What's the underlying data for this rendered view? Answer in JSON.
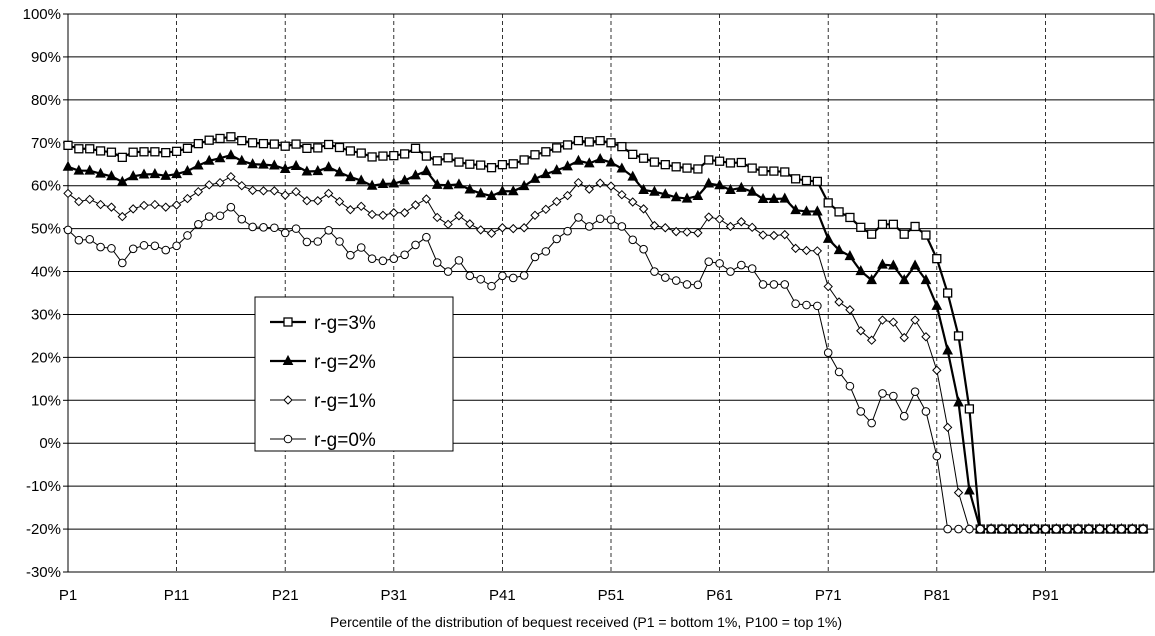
{
  "chart_data": {
    "type": "line",
    "title": "",
    "xlabel": "Percentile of the distribution of bequest received (P1 = bottom 1%, P100 = top 1%)",
    "ylabel": "",
    "ylim": [
      -30,
      100
    ],
    "xlim": [
      1,
      100
    ],
    "grid": "horizontal solid, vertical dashed",
    "legend": "center-left",
    "x_tick_labels": [
      "P1",
      "P11",
      "P21",
      "P31",
      "P41",
      "P51",
      "P61",
      "P71",
      "P81",
      "P91"
    ],
    "y_tick_labels": [
      "100%",
      "90%",
      "80%",
      "70%",
      "60%",
      "50%",
      "40%",
      "30%",
      "20%",
      "10%",
      "0%",
      "-10%",
      "-20%",
      "-30%"
    ],
    "series": [
      {
        "name": "r-g=3%",
        "marker": "square",
        "values": [
          69.4,
          68.6,
          68.6,
          68.1,
          67.8,
          66.6,
          67.8,
          67.9,
          67.9,
          67.7,
          68.0,
          68.7,
          69.8,
          70.6,
          71.0,
          71.4,
          70.5,
          70.0,
          69.8,
          69.7,
          69.2,
          69.7,
          68.7,
          68.8,
          69.6,
          68.9,
          68.1,
          67.6,
          66.7,
          66.9,
          67.0,
          67.4,
          68.7,
          66.9,
          65.8,
          66.5,
          65.5,
          65.0,
          64.8,
          64.2,
          64.9,
          65.1,
          66.0,
          67.2,
          67.9,
          68.8,
          69.5,
          70.5,
          70.2,
          70.5,
          70.0,
          69.1,
          67.3,
          66.4,
          65.5,
          64.9,
          64.4,
          64.1,
          63.9,
          66.0,
          65.7,
          65.3,
          65.4,
          64.1,
          63.4,
          63.4,
          63.2,
          61.6,
          61.2,
          61.0,
          56.0,
          53.9,
          52.6,
          50.3,
          48.7,
          51.0,
          51.0,
          48.7,
          50.5,
          48.5,
          43.0,
          35.0,
          25.0,
          8.0,
          -20,
          -20,
          -20,
          -20,
          -20,
          -20,
          -20,
          -20,
          -20,
          -20,
          -20,
          -20,
          -20,
          -20,
          -20,
          -20
        ]
      },
      {
        "name": "r-g=2%",
        "marker": "triangle",
        "values": [
          64.4,
          63.5,
          63.5,
          62.8,
          62.2,
          60.9,
          62.2,
          62.6,
          62.7,
          62.3,
          62.7,
          63.4,
          64.7,
          65.8,
          66.4,
          67.1,
          65.8,
          65.0,
          64.9,
          64.7,
          63.9,
          64.6,
          63.3,
          63.4,
          64.3,
          63.1,
          62.0,
          61.2,
          60.0,
          60.4,
          60.5,
          61.2,
          62.4,
          63.4,
          60.2,
          60.1,
          60.3,
          59.1,
          58.2,
          57.6,
          58.7,
          58.7,
          59.9,
          61.6,
          62.7,
          63.6,
          64.5,
          65.8,
          65.2,
          66.2,
          65.4,
          64.0,
          62.1,
          59.0,
          58.6,
          58.0,
          57.3,
          57.0,
          57.6,
          60.5,
          60.1,
          59.0,
          59.5,
          58.6,
          56.9,
          56.9,
          57.0,
          54.3,
          54.0,
          54.0,
          47.6,
          45.0,
          43.6,
          40.1,
          38.0,
          41.6,
          41.4,
          38.0,
          41.4,
          38.0,
          32.0,
          21.6,
          9.5,
          -11.0,
          -20,
          -20,
          -20,
          -20,
          -20,
          -20,
          -20,
          -20,
          -20,
          -20,
          -20,
          -20,
          -20,
          -20,
          -20,
          -20
        ]
      },
      {
        "name": "r-g=1%",
        "marker": "diamond",
        "values": [
          58.2,
          56.3,
          56.8,
          55.6,
          55.0,
          52.8,
          54.6,
          55.4,
          55.6,
          55.0,
          55.5,
          57.0,
          58.6,
          60.2,
          60.7,
          62.1,
          60.0,
          58.9,
          58.8,
          58.8,
          57.8,
          58.6,
          56.5,
          56.5,
          58.2,
          56.3,
          54.4,
          55.2,
          53.3,
          53.1,
          53.7,
          53.7,
          55.5,
          56.9,
          52.6,
          51.0,
          53.0,
          51.1,
          49.7,
          48.9,
          50.2,
          50.0,
          50.2,
          53.1,
          54.5,
          56.3,
          57.7,
          60.7,
          59.2,
          60.6,
          59.9,
          57.9,
          56.2,
          54.6,
          50.7,
          50.2,
          49.3,
          49.2,
          49.0,
          52.7,
          52.2,
          50.5,
          51.6,
          50.3,
          48.5,
          48.4,
          48.6,
          45.4,
          44.9,
          44.8,
          36.5,
          32.9,
          31.1,
          26.2,
          24.0,
          28.7,
          28.2,
          24.6,
          28.7,
          24.8,
          17.0,
          3.7,
          -11.5,
          -20,
          -20,
          -20,
          -20,
          -20,
          -20,
          -20,
          -20,
          -20,
          -20,
          -20,
          -20,
          -20,
          -20,
          -20,
          -20,
          -20
        ]
      },
      {
        "name": "r-g=0%",
        "marker": "circle",
        "values": [
          49.7,
          47.3,
          47.5,
          45.7,
          45.4,
          42.0,
          45.3,
          46.1,
          46.0,
          45.0,
          46.0,
          48.4,
          51.0,
          52.8,
          53.0,
          55.0,
          52.2,
          50.4,
          50.3,
          50.2,
          49.0,
          50.0,
          46.9,
          47.0,
          49.6,
          47.0,
          43.8,
          45.6,
          43.0,
          42.5,
          43.0,
          43.9,
          46.2,
          48.0,
          42.1,
          40.0,
          42.6,
          39.0,
          38.2,
          36.6,
          39.0,
          38.5,
          39.1,
          43.4,
          44.7,
          47.6,
          49.4,
          52.6,
          50.5,
          52.3,
          52.1,
          50.5,
          47.4,
          45.2,
          40.0,
          38.6,
          37.9,
          37.0,
          36.9,
          42.3,
          41.9,
          40.0,
          41.5,
          40.7,
          37.0,
          37.0,
          37.0,
          32.5,
          32.2,
          32.0,
          21.1,
          16.6,
          13.3,
          7.4,
          4.7,
          11.6,
          11.0,
          6.3,
          12.0,
          7.4,
          -3.0,
          -20,
          -20,
          -20,
          -20,
          -20,
          -20,
          -20,
          -20,
          -20,
          -20,
          -20,
          -20,
          -20,
          -20,
          -20,
          -20,
          -20,
          -20,
          -20
        ]
      }
    ]
  }
}
